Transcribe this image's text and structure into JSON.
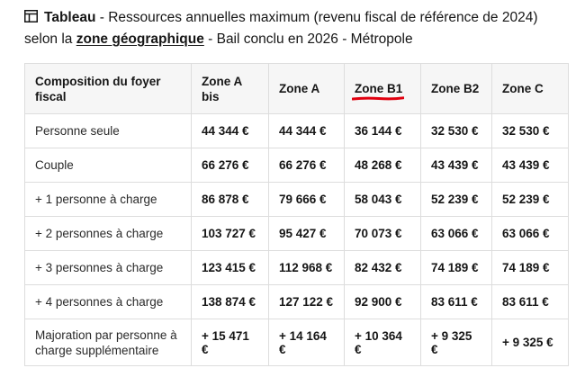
{
  "title": {
    "icon": "table-icon",
    "prefix": "Tableau",
    "part1": " - Ressources annuelles maximum (revenu fiscal de référence de 2024) selon la ",
    "link": "zone géographique",
    "part2": " - Bail conclu en 2026 - Métropole"
  },
  "table": {
    "headers": [
      "Composition du foyer fiscal",
      "Zone A bis",
      "Zone A",
      "Zone B1",
      "Zone B2",
      "Zone C"
    ],
    "highlight_color": "#e1000f",
    "rows": [
      {
        "label": "Personne seule",
        "values": [
          "44 344 €",
          "44 344 €",
          "36 144 €",
          "32 530 €",
          "32 530 €"
        ]
      },
      {
        "label": "Couple",
        "values": [
          "66 276 €",
          "66 276 €",
          "48 268 €",
          "43 439 €",
          "43 439 €"
        ]
      },
      {
        "label": "+ 1 personne à charge",
        "values": [
          "86 878 €",
          "79 666 €",
          "58 043 €",
          "52 239 €",
          "52 239 €"
        ]
      },
      {
        "label": "+ 2 personnes à charge",
        "values": [
          "103 727 €",
          "95 427 €",
          "70 073 €",
          "63 066 €",
          "63 066 €"
        ]
      },
      {
        "label": "+ 3 personnes à charge",
        "values": [
          "123 415 €",
          "112 968 €",
          "82 432 €",
          "74 189 €",
          "74 189 €"
        ]
      },
      {
        "label": "+ 4 personnes à charge",
        "values": [
          "138 874 €",
          "127 122 €",
          "92 900 €",
          "83 611 €",
          "83 611 €"
        ]
      },
      {
        "label": "Majoration par personne à charge supplémentaire",
        "values": [
          "+ 15 471 €",
          "+ 14 164 €",
          "+ 10 364 €",
          "+ 9 325 €",
          "+ 9 325 €"
        ]
      }
    ]
  }
}
